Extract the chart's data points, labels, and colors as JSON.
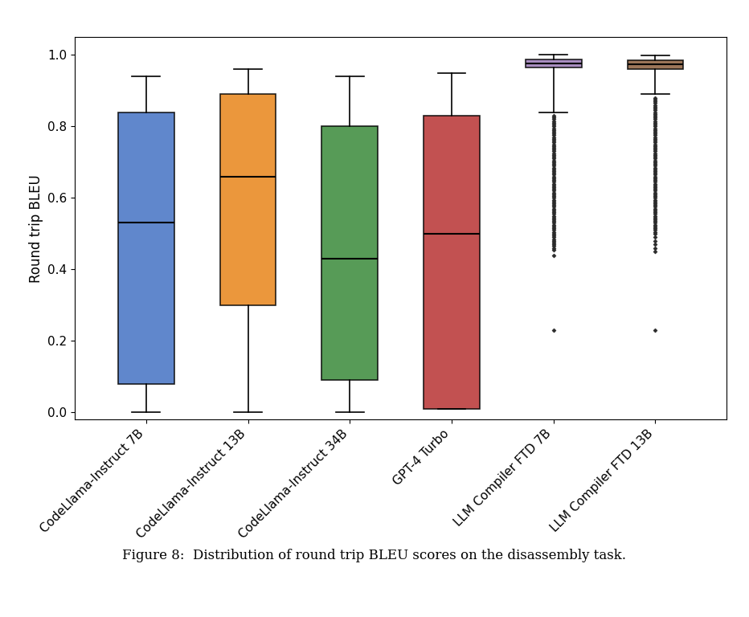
{
  "labels": [
    "CodeLlama-Instruct 7B",
    "CodeLlama-Instruct 13B",
    "CodeLlama-Instruct 34B",
    "GPT-4 Turbo",
    "LLM Compiler FTD 7B",
    "LLM Compiler FTD 13B"
  ],
  "colors": [
    "#4472c4",
    "#e8851a",
    "#3a8a3a",
    "#b83232",
    "#9b7bb8",
    "#8b5e3c"
  ],
  "box_stats": [
    {
      "whislo": 0.0,
      "q1": 0.08,
      "med": 0.53,
      "q3": 0.84,
      "whishi": 0.94,
      "fliers": []
    },
    {
      "whislo": 0.0,
      "q1": 0.3,
      "med": 0.66,
      "q3": 0.89,
      "whishi": 0.96,
      "fliers": []
    },
    {
      "whislo": 0.0,
      "q1": 0.09,
      "med": 0.43,
      "q3": 0.8,
      "whishi": 0.94,
      "fliers": []
    },
    {
      "whislo": 0.01,
      "q1": 0.01,
      "med": 0.5,
      "q3": 0.83,
      "whishi": 0.95,
      "fliers": []
    },
    {
      "whislo": 0.84,
      "q1": 0.965,
      "med": 0.975,
      "q3": 0.988,
      "whishi": 1.0,
      "fliers": [
        0.23,
        0.44,
        0.455,
        0.46,
        0.465,
        0.47,
        0.475,
        0.48,
        0.485,
        0.49,
        0.495,
        0.5,
        0.505,
        0.51,
        0.515,
        0.52,
        0.525,
        0.53,
        0.535,
        0.54,
        0.545,
        0.55,
        0.555,
        0.56,
        0.565,
        0.57,
        0.575,
        0.58,
        0.585,
        0.59,
        0.595,
        0.6,
        0.605,
        0.61,
        0.615,
        0.62,
        0.625,
        0.63,
        0.635,
        0.64,
        0.645,
        0.65,
        0.655,
        0.66,
        0.665,
        0.67,
        0.675,
        0.68,
        0.685,
        0.69,
        0.695,
        0.7,
        0.705,
        0.71,
        0.715,
        0.72,
        0.725,
        0.73,
        0.735,
        0.74,
        0.745,
        0.75,
        0.755,
        0.76,
        0.765,
        0.77,
        0.775,
        0.78,
        0.785,
        0.79,
        0.795,
        0.8,
        0.805,
        0.81,
        0.815,
        0.82,
        0.825,
        0.83
      ]
    },
    {
      "whislo": 0.89,
      "q1": 0.96,
      "med": 0.974,
      "q3": 0.985,
      "whishi": 0.998,
      "fliers": [
        0.23,
        0.45,
        0.46,
        0.47,
        0.48,
        0.49,
        0.5,
        0.505,
        0.51,
        0.515,
        0.52,
        0.525,
        0.53,
        0.535,
        0.54,
        0.545,
        0.55,
        0.555,
        0.56,
        0.565,
        0.57,
        0.575,
        0.58,
        0.585,
        0.59,
        0.595,
        0.6,
        0.605,
        0.61,
        0.615,
        0.62,
        0.625,
        0.63,
        0.635,
        0.64,
        0.645,
        0.65,
        0.655,
        0.66,
        0.665,
        0.67,
        0.675,
        0.68,
        0.685,
        0.69,
        0.695,
        0.7,
        0.705,
        0.71,
        0.715,
        0.72,
        0.725,
        0.73,
        0.735,
        0.74,
        0.745,
        0.75,
        0.755,
        0.76,
        0.765,
        0.77,
        0.775,
        0.78,
        0.785,
        0.79,
        0.795,
        0.8,
        0.805,
        0.81,
        0.815,
        0.82,
        0.825,
        0.83,
        0.835,
        0.84,
        0.845,
        0.85,
        0.855,
        0.86,
        0.865,
        0.87,
        0.875,
        0.88
      ]
    }
  ],
  "ylabel": "Round trip BLEU",
  "ylim": [
    -0.02,
    1.05
  ],
  "caption": "Figure 8:  Distribution of round trip BLEU scores on the disassembly task.",
  "figsize": [
    9.32,
    7.68
  ],
  "dpi": 100
}
